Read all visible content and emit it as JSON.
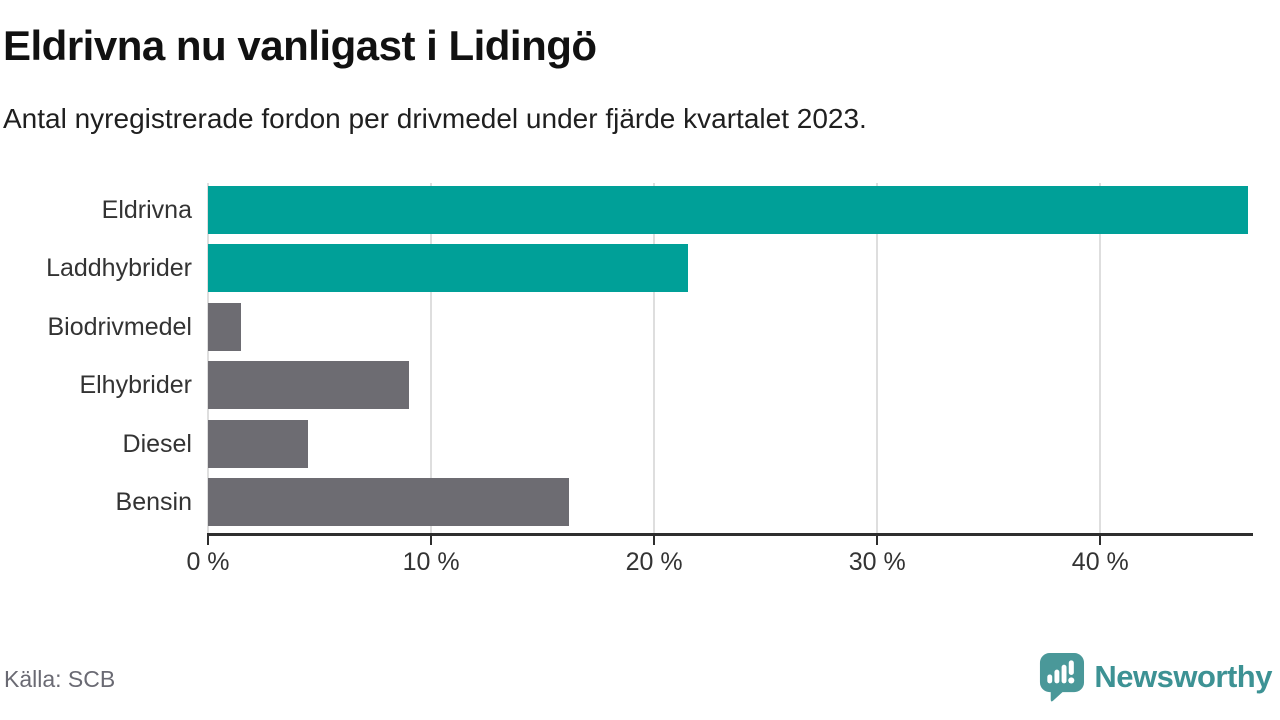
{
  "header": {
    "title": "Eldrivna nu vanligast i Lidingö",
    "subtitle": "Antal nyregistrerade fordon per drivmedel under fjärde kvartalet 2023."
  },
  "chart_data": {
    "type": "bar",
    "orientation": "horizontal",
    "title": "Eldrivna nu vanligast i Lidingö",
    "subtitle": "Antal nyregistrerade fordon per drivmedel under fjärde kvartalet 2023.",
    "categories": [
      "Eldrivna",
      "Laddhybrider",
      "Biodrivmedel",
      "Elhybrider",
      "Diesel",
      "Bensin"
    ],
    "values": [
      46.6,
      21.5,
      1.5,
      9.0,
      4.5,
      16.2
    ],
    "unit": "%",
    "highlight_color": "#00A098",
    "default_color": "#6D6C72",
    "bar_colors": [
      "#00A098",
      "#00A098",
      "#6D6C72",
      "#6D6C72",
      "#6D6C72",
      "#6D6C72"
    ],
    "x_ticks": [
      0,
      10,
      20,
      30,
      40
    ],
    "x_tick_labels": [
      "0 %",
      "10 %",
      "20 %",
      "30 %",
      "40 %"
    ],
    "xlim": [
      0,
      46.8
    ],
    "grid": true,
    "gridline_color": "#dedede",
    "axis_color": "#2e2e2e",
    "xlabel": "",
    "ylabel": ""
  },
  "footer": {
    "source": "Källa: SCB",
    "brand": {
      "name": "Newsworthy",
      "text_color": "#3d9294",
      "icon_color": "#4a9899"
    }
  }
}
